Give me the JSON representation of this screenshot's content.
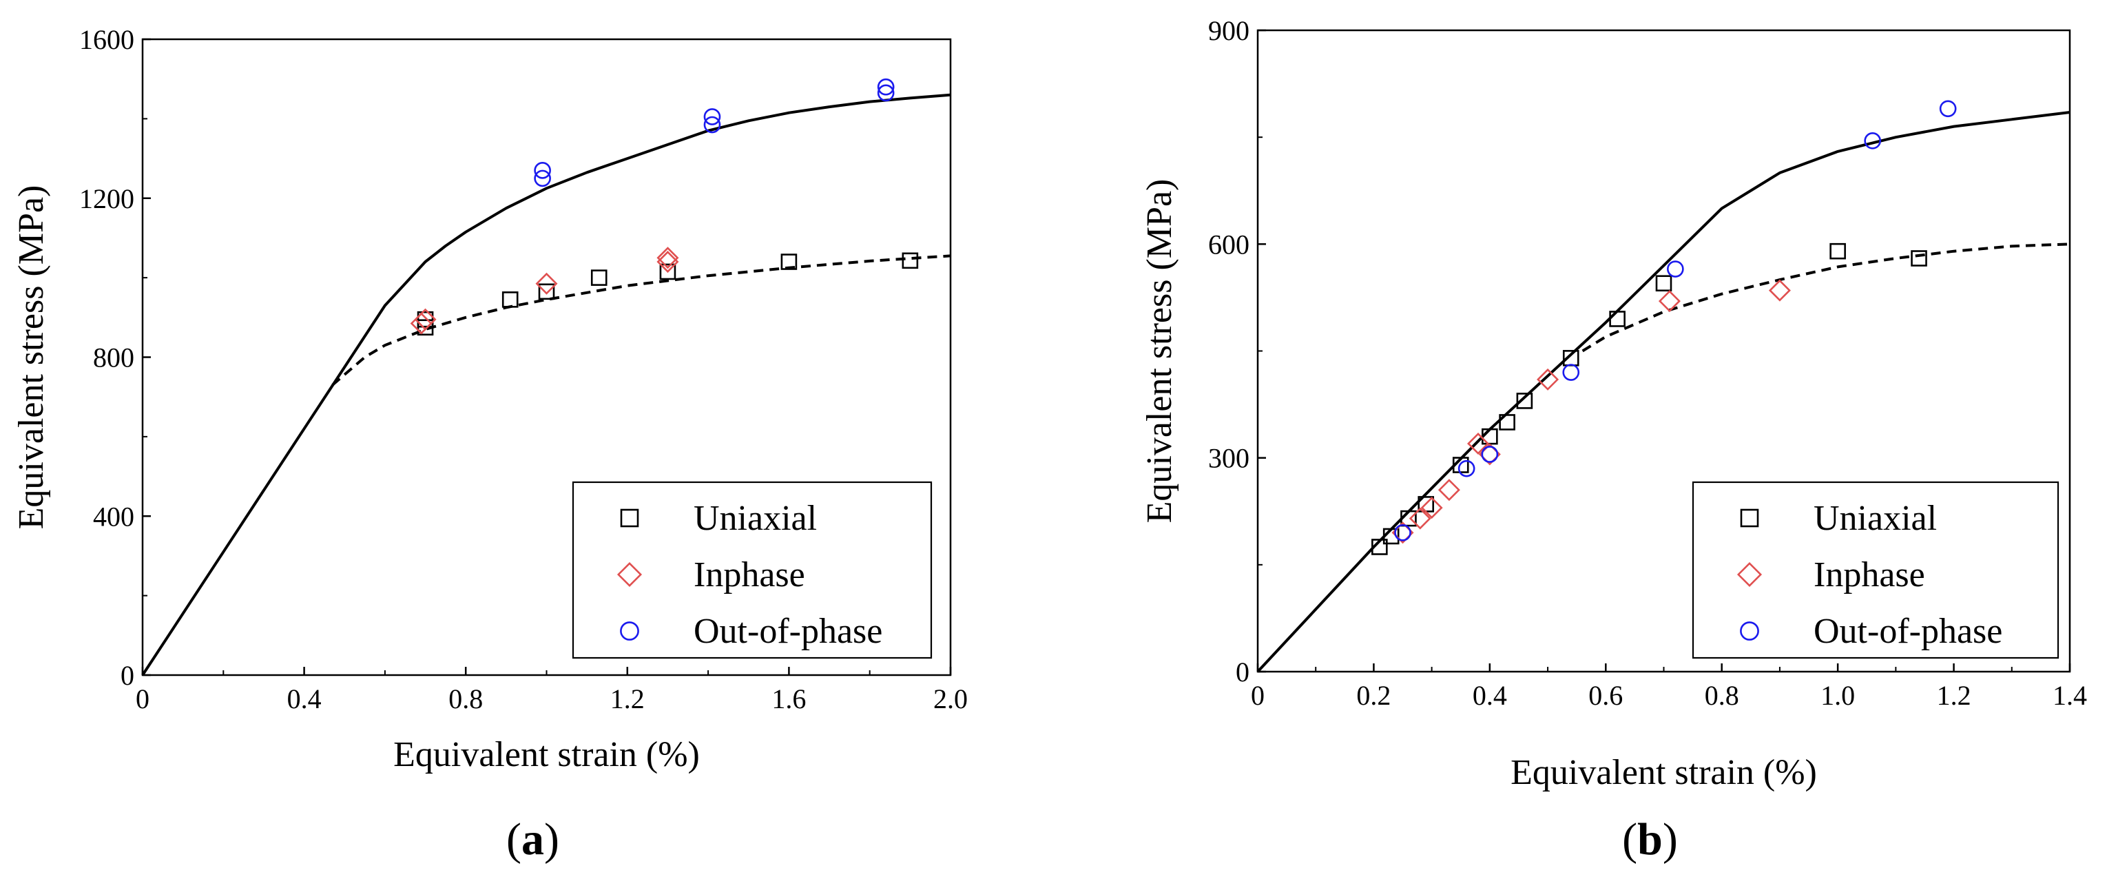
{
  "chart_data": [
    {
      "type": "scatter",
      "panel_label": {
        "open": "(",
        "letter": "a",
        "close": ")"
      },
      "xlabel": "Equivalent strain  (%)",
      "ylabel": "Equivalent stress  (MPa)",
      "xlim": [
        0,
        2.0
      ],
      "ylim": [
        0,
        1600
      ],
      "xticks": [
        0,
        0.4,
        0.8,
        1.2,
        1.6,
        2.0
      ],
      "xtick_labels": [
        "0",
        "0.4",
        "0.8",
        "1.2",
        "1.6",
        "2.0"
      ],
      "yticks": [
        0,
        400,
        800,
        1200,
        1600
      ],
      "ytick_labels": [
        "0",
        "400",
        "800",
        "1200",
        "1600"
      ],
      "legend_position": "bottom-right",
      "series": [
        {
          "name": "Uniaxial",
          "marker": "square",
          "color": "#000000",
          "x": [
            0.7,
            0.7,
            0.91,
            1.0,
            1.13,
            1.3,
            1.6,
            1.9
          ],
          "y": [
            875,
            895,
            945,
            965,
            1000,
            1015,
            1040,
            1043
          ]
        },
        {
          "name": "Inphase",
          "marker": "diamond",
          "color": "#e05050",
          "x": [
            0.69,
            0.7,
            1.0,
            1.3,
            1.3
          ],
          "y": [
            885,
            895,
            985,
            1040,
            1050
          ]
        },
        {
          "name": "Out-of-phase",
          "marker": "circle",
          "color": "#1a1aee",
          "x": [
            0.99,
            0.99,
            1.41,
            1.41,
            1.84,
            1.84
          ],
          "y": [
            1250,
            1270,
            1385,
            1405,
            1465,
            1480
          ]
        }
      ],
      "curves": [
        {
          "name": "solid",
          "style": "solid",
          "x": [
            0,
            0.2,
            0.4,
            0.6,
            0.7,
            0.75,
            0.8,
            0.9,
            1.0,
            1.1,
            1.2,
            1.3,
            1.4,
            1.5,
            1.6,
            1.7,
            1.8,
            1.9,
            2.0
          ],
          "y": [
            0,
            310,
            620,
            930,
            1040,
            1080,
            1115,
            1175,
            1225,
            1265,
            1300,
            1335,
            1370,
            1395,
            1415,
            1430,
            1443,
            1452,
            1460
          ]
        },
        {
          "name": "dashed",
          "style": "dashed",
          "x": [
            0.47,
            0.55,
            0.6,
            0.7,
            0.8,
            0.9,
            1.0,
            1.2,
            1.4,
            1.6,
            1.8,
            2.0
          ],
          "y": [
            730,
            800,
            830,
            870,
            900,
            925,
            945,
            980,
            1005,
            1025,
            1042,
            1055
          ]
        }
      ]
    },
    {
      "type": "scatter",
      "panel_label": {
        "open": "(",
        "letter": "b",
        "close": ")"
      },
      "xlabel": "Equivalent strain  (%)",
      "ylabel": "Equivalent stress  (MPa)",
      "xlim": [
        0,
        1.4
      ],
      "ylim": [
        0,
        900
      ],
      "xticks": [
        0,
        0.2,
        0.4,
        0.6,
        0.8,
        1.0,
        1.2,
        1.4
      ],
      "xtick_labels": [
        "0",
        "0.2",
        "0.4",
        "0.6",
        "0.8",
        "1.0",
        "1.2",
        "1.4"
      ],
      "yticks": [
        0,
        300,
        600,
        900
      ],
      "ytick_labels": [
        "0",
        "300",
        "600",
        "900"
      ],
      "legend_position": "bottom-right",
      "series": [
        {
          "name": "Uniaxial",
          "marker": "square",
          "color": "#000000",
          "x": [
            0.21,
            0.23,
            0.26,
            0.29,
            0.35,
            0.4,
            0.43,
            0.46,
            0.54,
            0.62,
            0.7,
            1.0,
            1.14
          ],
          "y": [
            175,
            190,
            215,
            235,
            290,
            330,
            350,
            380,
            440,
            495,
            545,
            590,
            580
          ]
        },
        {
          "name": "Inphase",
          "marker": "diamond",
          "color": "#e05050",
          "x": [
            0.25,
            0.28,
            0.3,
            0.33,
            0.38,
            0.4,
            0.5,
            0.71,
            0.9
          ],
          "y": [
            195,
            215,
            230,
            255,
            320,
            305,
            410,
            520,
            535
          ]
        },
        {
          "name": "Out-of-phase",
          "marker": "circle",
          "color": "#1a1aee",
          "x": [
            0.25,
            0.36,
            0.4,
            0.54,
            0.72,
            1.06,
            1.19
          ],
          "y": [
            195,
            285,
            305,
            420,
            565,
            745,
            790
          ]
        }
      ],
      "curves": [
        {
          "name": "solid",
          "style": "solid",
          "x": [
            0,
            0.2,
            0.4,
            0.5,
            0.6,
            0.7,
            0.8,
            0.9,
            1.0,
            1.1,
            1.2,
            1.3,
            1.4
          ],
          "y": [
            0,
            175,
            340,
            415,
            490,
            570,
            650,
            700,
            730,
            750,
            765,
            775,
            785
          ]
        },
        {
          "name": "dashed",
          "style": "dashed",
          "x": [
            0.56,
            0.6,
            0.7,
            0.8,
            0.9,
            1.0,
            1.1,
            1.2,
            1.3,
            1.4
          ],
          "y": [
            450,
            470,
            505,
            530,
            550,
            568,
            580,
            590,
            597,
            600
          ]
        }
      ]
    }
  ]
}
